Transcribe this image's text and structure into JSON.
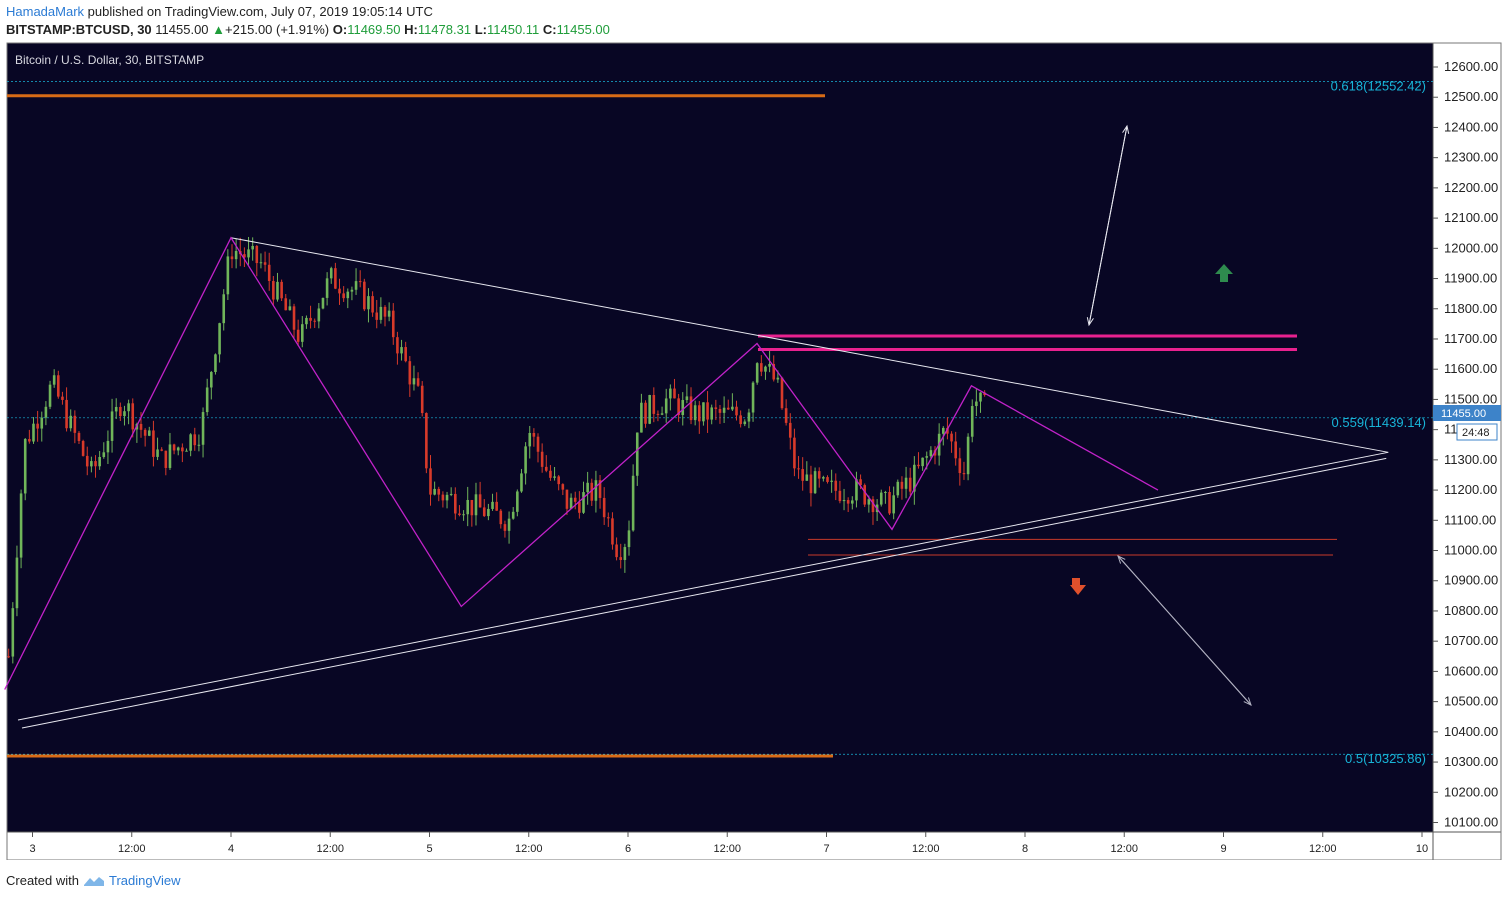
{
  "header": {
    "author": "HamadaMark",
    "published": "published on TradingView.com, July 07, 2019 19:05:14 UTC",
    "symbol": "BITSTAMP:BTCUSD, 30",
    "last": "11455.00",
    "change": "+215.00 (+1.91%)",
    "open_label": "O:",
    "open": "11469.50",
    "high_label": "H:",
    "high": "11478.31",
    "low_label": "L:",
    "low": "11450.11",
    "close_label": "C:",
    "close": "11455.00"
  },
  "footer": {
    "created_with": "Created with",
    "brand": "TradingView"
  },
  "colors": {
    "background": "#080624",
    "axis_bg": "#ffffff",
    "up": "#70b55a",
    "down": "#d83a2a",
    "orange": "#d86b16",
    "magenta": "#e8218f",
    "purple": "#c022c8",
    "white": "#e8e8f0",
    "red_line": "#c83a2a",
    "fib_text": "#18b4d8",
    "green_arrow": "#2e8b4e",
    "red_arrow": "#e0502c"
  },
  "chart_data": {
    "type": "candlestick",
    "title": "Bitcoin / U.S. Dollar, 30, BITSTAMP",
    "ylim": [
      10060,
      12660
    ],
    "yticks": [
      "12600.00",
      "12500.00",
      "12400.00",
      "12300.00",
      "12200.00",
      "12100.00",
      "12000.00",
      "11900.00",
      "11800.00",
      "11700.00",
      "11600.00",
      "11500.00",
      "11400.00",
      "11300.00",
      "11200.00",
      "11100.00",
      "11000.00",
      "10900.00",
      "10800.00",
      "10700.00",
      "10600.00",
      "10500.00",
      "10400.00",
      "10300.00",
      "10200.00",
      "10100.00"
    ],
    "xticks": [
      {
        "label": "3",
        "day": 3.0
      },
      {
        "label": "12:00",
        "day": 3.5
      },
      {
        "label": "4",
        "day": 4.0
      },
      {
        "label": "12:00",
        "day": 4.5
      },
      {
        "label": "5",
        "day": 5.0
      },
      {
        "label": "12:00",
        "day": 5.5
      },
      {
        "label": "6",
        "day": 6.0
      },
      {
        "label": "12:00",
        "day": 6.5
      },
      {
        "label": "7",
        "day": 7.0
      },
      {
        "label": "12:00",
        "day": 7.5
      },
      {
        "label": "8",
        "day": 8.0
      },
      {
        "label": "12:00",
        "day": 8.5
      },
      {
        "label": "9",
        "day": 9.0
      },
      {
        "label": "12:00",
        "day": 9.5
      },
      {
        "label": "10",
        "day": 10.0
      }
    ],
    "path_points": [
      [
        2.88,
        10650
      ],
      [
        2.96,
        11350
      ],
      [
        3.1,
        11550
      ],
      [
        3.3,
        11250
      ],
      [
        3.45,
        11500
      ],
      [
        3.65,
        11300
      ],
      [
        3.85,
        11400
      ],
      [
        3.95,
        11800
      ],
      [
        4.0,
        12000
      ],
      [
        4.15,
        11950
      ],
      [
        4.35,
        11700
      ],
      [
        4.5,
        11900
      ],
      [
        4.65,
        11850
      ],
      [
        4.8,
        11750
      ],
      [
        4.95,
        11500
      ],
      [
        5.0,
        11200
      ],
      [
        5.2,
        11150
      ],
      [
        5.4,
        11100
      ],
      [
        5.5,
        11400
      ],
      [
        5.6,
        11250
      ],
      [
        5.7,
        11150
      ],
      [
        5.85,
        11200
      ],
      [
        5.95,
        11000
      ],
      [
        6.0,
        11050
      ],
      [
        6.05,
        11450
      ],
      [
        6.2,
        11500
      ],
      [
        6.35,
        11450
      ],
      [
        6.5,
        11450
      ],
      [
        6.6,
        11450
      ],
      [
        6.65,
        11650
      ],
      [
        6.75,
        11550
      ],
      [
        6.85,
        11250
      ],
      [
        7.0,
        11200
      ],
      [
        7.15,
        11200
      ],
      [
        7.3,
        11150
      ],
      [
        7.45,
        11250
      ],
      [
        7.6,
        11400
      ],
      [
        7.7,
        11250
      ],
      [
        7.73,
        11510
      ],
      [
        7.8,
        11470
      ]
    ],
    "current_price": "11455.00",
    "countdown": "24:48",
    "fib_levels": [
      {
        "label": "0.618(12552.42)",
        "price": 12552.42
      },
      {
        "label": "0.559(11439.14)",
        "price": 11439.14
      },
      {
        "label": "0.5(10325.86)",
        "price": 10325.86
      }
    ],
    "drawings": {
      "orange_levels": [
        12505,
        10320
      ],
      "magenta_levels": [
        11710,
        11665
      ],
      "red_levels": [
        11037,
        10985
      ],
      "triangle_apex": [
        9.83,
        11325
      ],
      "upper_trendline_start": [
        4.0,
        12035
      ],
      "wave_points": [
        [
          2.86,
          10540
        ],
        [
          4.0,
          12035
        ],
        [
          5.16,
          10815
        ],
        [
          6.65,
          11685
        ],
        [
          7.33,
          11070
        ],
        [
          7.73,
          11545
        ],
        [
          8.67,
          11200
        ]
      ]
    }
  }
}
